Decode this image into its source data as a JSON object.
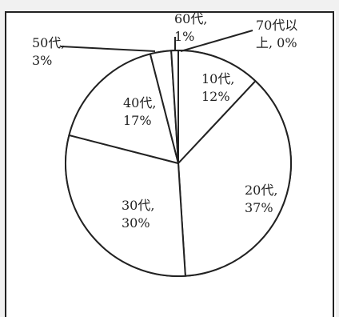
{
  "chart_data": {
    "type": "pie",
    "categories": [
      "10代",
      "20代",
      "30代",
      "40代",
      "50代",
      "60代",
      "70代以上"
    ],
    "values": [
      12,
      37,
      30,
      17,
      3,
      1,
      0
    ],
    "labels": [
      [
        "10代,",
        "12%"
      ],
      [
        "20代,",
        "37%"
      ],
      [
        "30代,",
        "30%"
      ],
      [
        "40代,",
        "17%"
      ],
      [
        "50代,",
        "3%"
      ],
      [
        "60代,",
        "1%"
      ],
      [
        "70代以",
        "上, 0%"
      ]
    ],
    "colors": {
      "fill": "#ffffff",
      "stroke": "#222222"
    },
    "legend": "none",
    "start_angle_deg": 0,
    "direction": "clockwise"
  }
}
